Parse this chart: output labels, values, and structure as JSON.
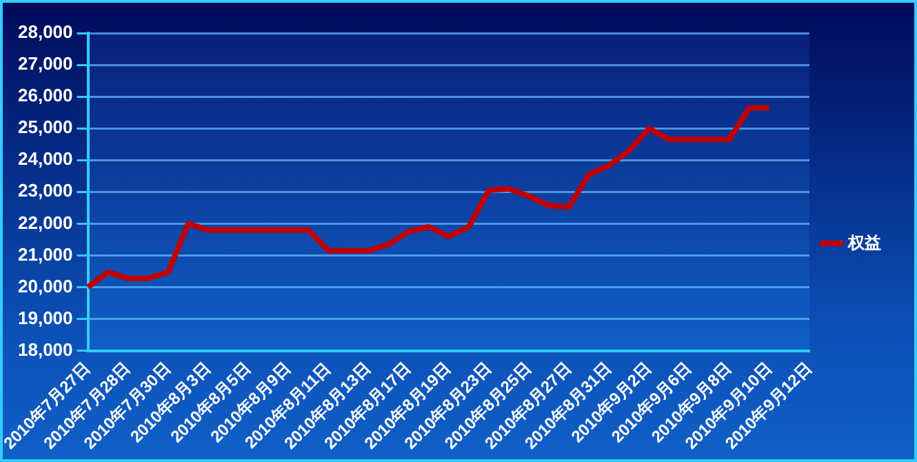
{
  "chart_data": {
    "type": "line",
    "categories": [
      "2010年7月27日",
      null,
      "2010年7月28日",
      null,
      "2010年7月30日",
      null,
      "2010年8月3日",
      null,
      "2010年8月5日",
      null,
      "2010年8月9日",
      null,
      "2010年8月11日",
      null,
      "2010年8月13日",
      null,
      "2010年8月17日",
      null,
      "2010年8月19日",
      null,
      "2010年8月23日",
      null,
      "2010年8月25日",
      null,
      "2010年8月27日",
      null,
      "2010年8月31日",
      null,
      "2010年9月2日",
      null,
      "2010年9月6日",
      null,
      "2010年9月8日",
      null,
      "2010年9月10日",
      null,
      "2010年9月12日"
    ],
    "series": [
      {
        "name": "权益",
        "color": "#c00000",
        "values": [
          20000,
          20470,
          20280,
          20280,
          20470,
          22000,
          21800,
          21800,
          21800,
          21800,
          21800,
          21800,
          21150,
          21150,
          21150,
          21350,
          21750,
          21900,
          21600,
          21900,
          23050,
          23100,
          22870,
          22570,
          22530,
          23550,
          23830,
          24300,
          25000,
          24650,
          24650,
          24650,
          24650,
          25650,
          25650,
          null,
          null
        ]
      }
    ],
    "ylim": [
      18000,
      28000
    ],
    "yticks": [
      {
        "value": 18000,
        "label": "18,000"
      },
      {
        "value": 19000,
        "label": "19,000"
      },
      {
        "value": 20000,
        "label": "20,000"
      },
      {
        "value": 21000,
        "label": "21,000"
      },
      {
        "value": 22000,
        "label": "22,000"
      },
      {
        "value": 23000,
        "label": "23,000"
      },
      {
        "value": 24000,
        "label": "24,000"
      },
      {
        "value": 25000,
        "label": "25,000"
      },
      {
        "value": 26000,
        "label": "26,000"
      },
      {
        "value": 27000,
        "label": "27,000"
      },
      {
        "value": 28000,
        "label": "28,000"
      }
    ],
    "grid": "y",
    "legend": "right",
    "marker": "none",
    "line_style": "solid"
  }
}
